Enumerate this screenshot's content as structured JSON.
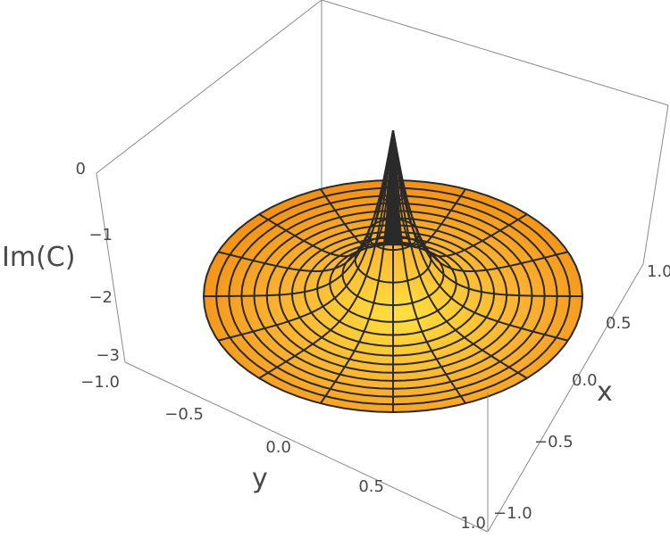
{
  "chart_data": {
    "type": "surface3d",
    "title": "",
    "surface": "disk of radius 1 centred at origin; height rises sharply to a cusp at x=0, y=0",
    "xlabel": "x",
    "ylabel": "y",
    "zlabel": "Im(C)",
    "xlim": [
      -1.0,
      1.0
    ],
    "ylim": [
      -1.0,
      1.0
    ],
    "zlim": [
      -3,
      0
    ],
    "x_ticks": [
      "−1.0",
      "−0.5",
      "0.0",
      "0.5",
      "1.0"
    ],
    "y_ticks": [
      "−1.0",
      "−0.5",
      "0.0",
      "0.5",
      "1.0"
    ],
    "z_ticks": [
      "0",
      "−1",
      "−2",
      "−3"
    ],
    "rim_value": -3,
    "peak_value": 0,
    "radial_lines": 16,
    "rings": 15,
    "colors": {
      "surface_light": "#ffe040",
      "surface_mid": "#fbb030",
      "surface_dark": "#f08a10",
      "mesh": "#2a2a2a",
      "box": "#8a8a8a"
    }
  }
}
